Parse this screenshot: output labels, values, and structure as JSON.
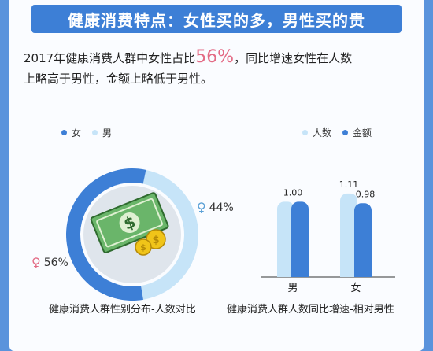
{
  "header": {
    "title": "健康消费特点：女性买的多，男性买的贵"
  },
  "description": {
    "line1_before": "2017年健康消费人群中女性占比",
    "line1_highlight": "56%",
    "line1_after": "，同比增速女性在人数",
    "line2": "上略高于男性，金额上略低于男性。"
  },
  "colors": {
    "primary": "#3d7fd6",
    "light": "#c6e4f8",
    "accent": "#e36b85",
    "coin": "#f0c419",
    "bill": "#6ab56a"
  },
  "chart_data": [
    {
      "type": "pie",
      "title": "健康消费人群性别分布-人数对比",
      "legend": [
        "女",
        "男"
      ],
      "slices": [
        {
          "label": "女",
          "value": 56,
          "display": "56%",
          "symbol": "♀"
        },
        {
          "label": "男",
          "value": 44,
          "display": "44%",
          "symbol": "♀"
        }
      ],
      "center_icon": "money-bill-coins-icon"
    },
    {
      "type": "bar",
      "title": "健康消费人群人数同比增速-相对男性",
      "legend": [
        "人数",
        "金额"
      ],
      "categories": [
        "男",
        "女"
      ],
      "series": [
        {
          "name": "人数",
          "values": [
            1.0,
            1.11
          ]
        },
        {
          "name": "金额",
          "values": [
            1.0,
            0.98
          ]
        }
      ],
      "value_labels": [
        "1.00",
        "1.11",
        "0.98"
      ]
    }
  ]
}
